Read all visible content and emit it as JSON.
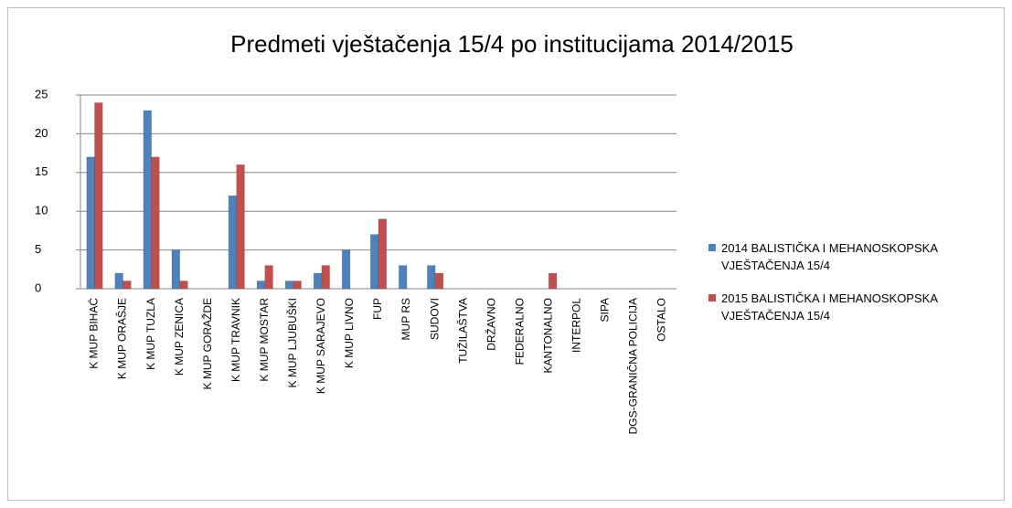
{
  "chart_data": {
    "type": "bar",
    "title": "Predmeti vještačenja 15/4 po institucijama 2014/2015",
    "categories": [
      "K MUP BIHAĆ",
      "K MUP ORAŠJE",
      "K MUP TUZLA",
      "K MUP ZENICA",
      "K MUP GORAŽDE",
      "K MUP TRAVNIK",
      "K MUP MOSTAR",
      "K MUP LJUBUŠKI",
      "K MUP SARAJEVO",
      "K MUP LIVNO",
      "FUP",
      "MUP RS",
      "SUDOVI",
      "TUŽILAŠTVA",
      "DRŽAVNO",
      "FEDERALNO",
      "KANTONALNO",
      "INTERPOL",
      "SIPA",
      "DGS-GRANIČNA  POLICIJA",
      "OSTALO"
    ],
    "series": [
      {
        "name": "2014 BALISTIČKA I MEHANOSKOPSKA VJEŠTAČENJA  15/4",
        "color": "#4f81bd",
        "values": [
          17,
          2,
          23,
          5,
          0,
          12,
          1,
          1,
          2,
          5,
          7,
          3,
          3,
          0,
          0,
          0,
          0,
          0,
          0,
          0,
          0
        ]
      },
      {
        "name": "2015 BALISTIČKA I MEHANOSKOPSKA VJEŠTAČENJA  15/4",
        "color": "#c0504d",
        "values": [
          24,
          1,
          17,
          1,
          0,
          16,
          3,
          1,
          3,
          0,
          9,
          0,
          2,
          0,
          0,
          0,
          2,
          0,
          0,
          0,
          0
        ]
      }
    ],
    "ylim": [
      0,
      25
    ],
    "yticks": [
      0,
      5,
      10,
      15,
      20,
      25
    ],
    "grid": true,
    "legend": "right"
  }
}
